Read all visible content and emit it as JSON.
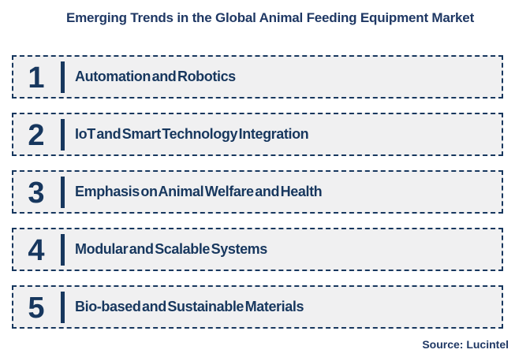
{
  "title": "Emerging Trends in the Global Animal Feeding Equipment Market",
  "trends": [
    {
      "number": "1",
      "label": "Automation and Robotics"
    },
    {
      "number": "2",
      "label": "IoT and Smart Technology Integration"
    },
    {
      "number": "3",
      "label": "Emphasis on Animal Welfare and Health"
    },
    {
      "number": "4",
      "label": "Modular and Scalable Systems"
    },
    {
      "number": "5",
      "label": "Bio-based and Sustainable Materials"
    }
  ],
  "source": "Source: Lucintel",
  "colors": {
    "navy": "#17375E",
    "title_navy": "#1F3864",
    "row_background": "#F0F0F1",
    "page_background": "#FFFFFF"
  }
}
